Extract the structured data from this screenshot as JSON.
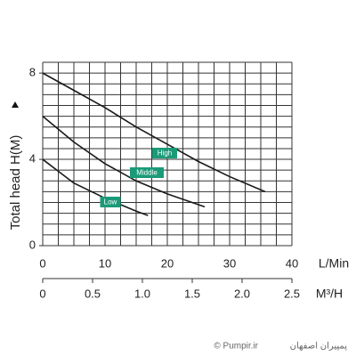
{
  "chart_data": {
    "type": "line",
    "y_label": "Total head H(M)",
    "x_label": "L/Min",
    "x2_label": "M³/H",
    "xlim": [
      0,
      40
    ],
    "xticks": [
      0,
      10,
      20,
      30,
      40
    ],
    "ylim": [
      0,
      8.5
    ],
    "yticks": [
      0,
      4,
      8
    ],
    "x2lim": [
      0,
      2.5
    ],
    "x2ticks": [
      0,
      0.5,
      {
        "value": 1,
        "label": "1.0"
      },
      1.5,
      {
        "value": 2,
        "label": "2.0"
      },
      2.5
    ],
    "grid": true,
    "series": [
      {
        "name": "High",
        "color": "#1a1a1a",
        "x": [
          0,
          5,
          10,
          15,
          20,
          25,
          30,
          35.7
        ],
        "values": [
          8,
          7.2,
          6.4,
          5.5,
          4.7,
          3.9,
          3.2,
          2.5
        ]
      },
      {
        "name": "Middle",
        "color": "#1a1a1a",
        "x": [
          0,
          5,
          10,
          15,
          20,
          26
        ],
        "values": [
          6,
          4.8,
          3.8,
          3.0,
          2.4,
          1.8
        ]
      },
      {
        "name": "Low",
        "color": "#1a1a1a",
        "x": [
          0,
          5,
          10,
          15,
          16.9
        ],
        "values": [
          4,
          2.9,
          2.2,
          1.6,
          1.4
        ]
      }
    ],
    "watermark": {
      "site": "© Pumpir.ir",
      "brand": "پمپیران اصفهان"
    }
  }
}
